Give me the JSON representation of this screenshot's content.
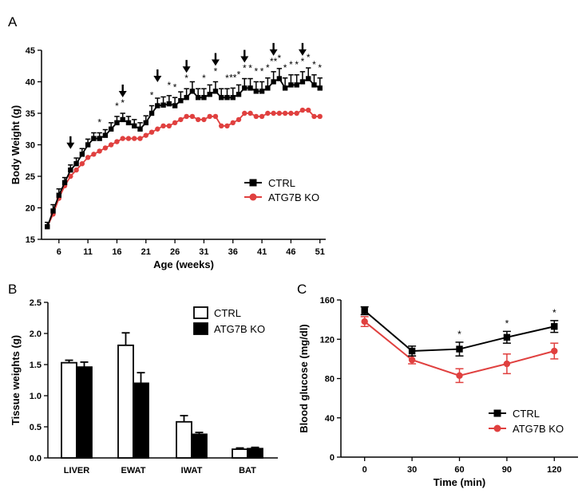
{
  "figure": {
    "panels": [
      {
        "id": "A",
        "letter": "A"
      },
      {
        "id": "B",
        "letter": "B"
      },
      {
        "id": "C",
        "letter": "C"
      }
    ],
    "colors": {
      "ctrl": "#000000",
      "ko": "#e0403f"
    }
  },
  "chart_data": [
    {
      "panel": "A",
      "type": "line",
      "xlabel": "Age (weeks)",
      "ylabel": "Body Weight (g)",
      "xlim": [
        3,
        52
      ],
      "ylim": [
        15,
        45
      ],
      "xticks": [
        6,
        11,
        16,
        21,
        26,
        31,
        36,
        41,
        46,
        51
      ],
      "yticks": [
        15,
        20,
        25,
        30,
        35,
        40,
        45
      ],
      "legend_position": "right",
      "series": [
        {
          "name": "CTRL",
          "color": "#000000",
          "marker": "square",
          "x": [
            4,
            5,
            6,
            7,
            8,
            9,
            10,
            11,
            12,
            13,
            14,
            15,
            16,
            17,
            18,
            19,
            20,
            21,
            22,
            23,
            24,
            25,
            26,
            27,
            28,
            29,
            30,
            31,
            32,
            33,
            34,
            35,
            36,
            37,
            38,
            39,
            40,
            41,
            42,
            43,
            44,
            45,
            46,
            47,
            48,
            49,
            50,
            51
          ],
          "y": [
            17,
            19.5,
            22,
            24,
            26,
            27,
            28.5,
            30,
            31,
            31,
            31.5,
            32.5,
            33.5,
            34,
            33.5,
            33,
            32.5,
            33.5,
            35,
            36.2,
            36.3,
            36.5,
            36.2,
            37,
            37.5,
            38.5,
            37.5,
            37.5,
            38,
            38.5,
            37.5,
            37.5,
            37.5,
            38,
            39,
            39,
            38.5,
            38.5,
            39,
            40,
            40.5,
            39,
            39.5,
            39.5,
            40,
            40.5,
            39.5,
            39
          ],
          "err": [
            0.7,
            1,
            1,
            0.8,
            0.8,
            0.9,
            0.9,
            0.9,
            0.9,
            0.9,
            0.9,
            1,
            1,
            1,
            1,
            1,
            1,
            1.1,
            1.2,
            1.2,
            1.3,
            1.3,
            1.3,
            1.4,
            1.4,
            1.5,
            1.4,
            1.4,
            1.5,
            1.5,
            1.4,
            1.4,
            1.5,
            1.5,
            1.5,
            1.5,
            1.5,
            1.5,
            1.6,
            1.6,
            1.6,
            1.6,
            1.6,
            1.6,
            1.6,
            1.7,
            1.6,
            1.6
          ]
        },
        {
          "name": "ATG7B KO",
          "color": "#e0403f",
          "marker": "circle",
          "x": [
            4,
            5,
            6,
            7,
            8,
            9,
            10,
            11,
            12,
            13,
            14,
            15,
            16,
            17,
            18,
            19,
            20,
            21,
            22,
            23,
            24,
            25,
            26,
            27,
            28,
            29,
            30,
            31,
            32,
            33,
            34,
            35,
            36,
            37,
            38,
            39,
            40,
            41,
            42,
            43,
            44,
            45,
            46,
            47,
            48,
            49,
            50,
            51
          ],
          "y": [
            17,
            19,
            21.5,
            23.5,
            25,
            26,
            27,
            28,
            28.5,
            29,
            29.5,
            30,
            30.5,
            31,
            31,
            31,
            31,
            31.5,
            32,
            32.5,
            33,
            33,
            33.5,
            34,
            34.5,
            34.5,
            34,
            34,
            34.5,
            34.5,
            33,
            33,
            33.5,
            34,
            35,
            35,
            34.5,
            34.5,
            35,
            35,
            35,
            35,
            35,
            35,
            35.5,
            35.5,
            34.5,
            34.5
          ]
        }
      ],
      "arrows_at_week": [
        8,
        17,
        23,
        28,
        33,
        38,
        43,
        48
      ],
      "significance_marks": [
        {
          "x": 13,
          "text": "*"
        },
        {
          "x": 16,
          "text": "*"
        },
        {
          "x": 17,
          "text": "*"
        },
        {
          "x": 22,
          "text": "*"
        },
        {
          "x": 25,
          "text": "*"
        },
        {
          "x": 26,
          "text": "*"
        },
        {
          "x": 28,
          "text": "*"
        },
        {
          "x": 31,
          "text": "*"
        },
        {
          "x": 33,
          "text": "*"
        },
        {
          "x": 35,
          "text": "*"
        },
        {
          "x": 36,
          "text": "**"
        },
        {
          "x": 37,
          "text": "*"
        },
        {
          "x": 38,
          "text": "*"
        },
        {
          "x": 39,
          "text": "*"
        },
        {
          "x": 40,
          "text": "*"
        },
        {
          "x": 41,
          "text": "*"
        },
        {
          "x": 42,
          "text": "*"
        },
        {
          "x": 43,
          "text": "**"
        },
        {
          "x": 44,
          "text": "*"
        },
        {
          "x": 45,
          "text": "*"
        },
        {
          "x": 46,
          "text": "*"
        },
        {
          "x": 47,
          "text": "*"
        },
        {
          "x": 48,
          "text": "*"
        },
        {
          "x": 49,
          "text": "*"
        },
        {
          "x": 50,
          "text": "*"
        },
        {
          "x": 51,
          "text": "*"
        }
      ]
    },
    {
      "panel": "B",
      "type": "bar",
      "categories": [
        "LIVER",
        "EWAT",
        "IWAT",
        "BAT"
      ],
      "ylabel": "Tissue weights (g)",
      "ylim": [
        0,
        2.5
      ],
      "yticks": [
        0.0,
        0.5,
        1.0,
        1.5,
        2.0,
        2.5
      ],
      "ytick_labels": [
        "0.0",
        "0.5",
        "1.0",
        "1.5",
        "2.0",
        "2.5"
      ],
      "legend_position": "top-right",
      "series": [
        {
          "name": "CTRL",
          "fill": "open",
          "values": [
            1.53,
            1.81,
            0.58,
            0.14
          ],
          "err": [
            0.04,
            0.2,
            0.1,
            0.02
          ]
        },
        {
          "name": "ATG7B KO",
          "fill": "solid",
          "values": [
            1.46,
            1.2,
            0.38,
            0.15
          ],
          "err": [
            0.08,
            0.17,
            0.03,
            0.02
          ]
        }
      ]
    },
    {
      "panel": "C",
      "type": "line",
      "xlabel": "Time (min)",
      "ylabel": "Blood glucose (mg/dl)",
      "xlim": [
        -15,
        135
      ],
      "ylim": [
        0,
        160
      ],
      "xticks": [
        0,
        30,
        60,
        90,
        120
      ],
      "yticks": [
        0,
        40,
        80,
        120,
        160
      ],
      "legend_position": "bottom-right",
      "series": [
        {
          "name": "CTRL",
          "color": "#000000",
          "marker": "square",
          "x": [
            0,
            30,
            60,
            90,
            120
          ],
          "y": [
            149,
            108,
            110,
            122,
            133
          ],
          "err": [
            4,
            5,
            7,
            6,
            6
          ]
        },
        {
          "name": "ATG7B KO",
          "color": "#e0403f",
          "marker": "circle",
          "x": [
            0,
            30,
            60,
            90,
            120
          ],
          "y": [
            138,
            99,
            83,
            95,
            108
          ],
          "err": [
            5,
            4,
            7,
            10,
            8
          ]
        }
      ],
      "significance_marks": [
        {
          "x": 60,
          "text": "*"
        },
        {
          "x": 90,
          "text": "*"
        },
        {
          "x": 120,
          "text": "*"
        }
      ]
    }
  ]
}
